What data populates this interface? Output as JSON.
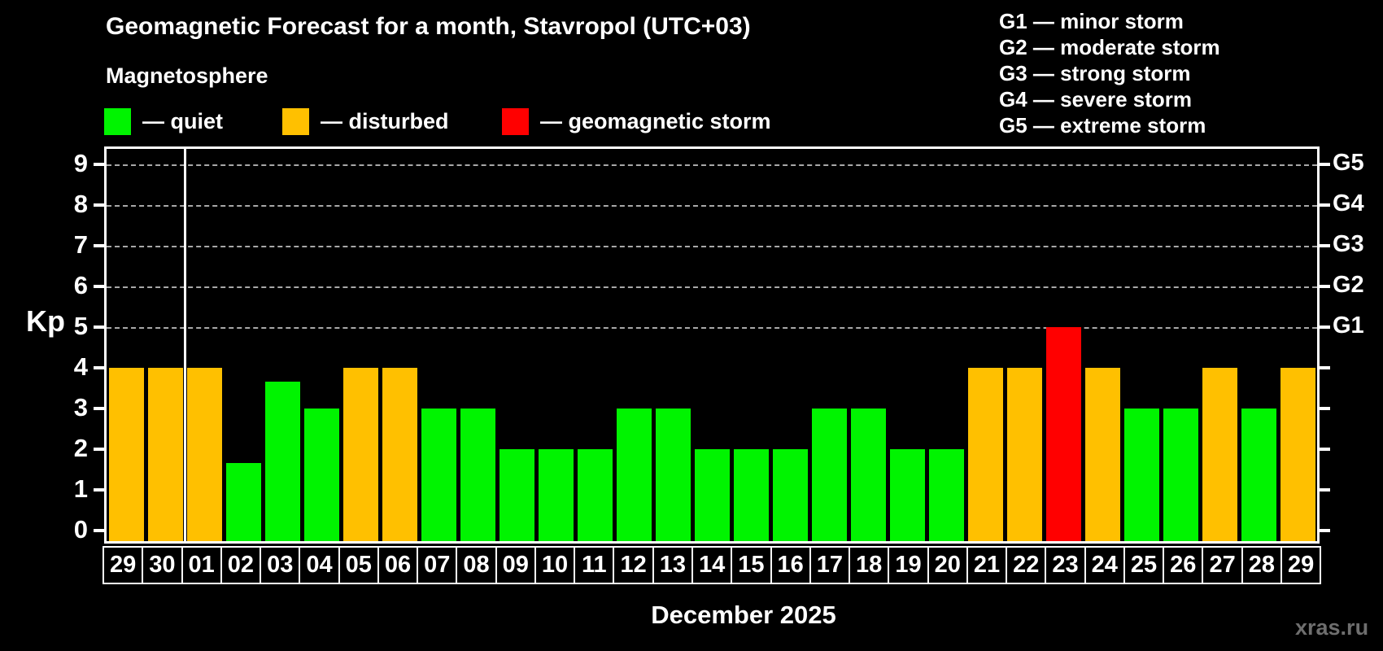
{
  "title": "Geomagnetic Forecast for a month, Stavropol (UTC+03)",
  "subtitle": "Magnetosphere",
  "legend": {
    "items": [
      {
        "name": "quiet",
        "label": "— quiet",
        "color": "#00f400"
      },
      {
        "name": "disturbed",
        "label": "— disturbed",
        "color": "#ffc000"
      },
      {
        "name": "storm",
        "label": "— geomagnetic storm",
        "color": "#ff0000"
      }
    ]
  },
  "storm_scale_legend": {
    "items": [
      "G1 — minor storm",
      "G2 — moderate storm",
      "G3 — strong storm",
      "G4 — severe storm",
      "G5 — extreme storm"
    ]
  },
  "watermark": "xras.ru",
  "colors": {
    "background": "#000000",
    "axis": "#ffffff",
    "grid": "#a8a8a8",
    "quiet": "#00f400",
    "disturbed": "#ffc000",
    "storm": "#ff0000",
    "watermark_text": "#6e6e6e"
  },
  "chart_data": {
    "type": "bar",
    "title": "Geomagnetic Forecast for a month, Stavropol (UTC+03)",
    "xlabel": "December 2025",
    "ylabel": "Kp",
    "ylim": [
      0,
      9
    ],
    "y_ticks": [
      0,
      1,
      2,
      3,
      4,
      5,
      6,
      7,
      8,
      9
    ],
    "grid": "dashed horizontal gridlines only at Kp 5,6,7,8,9",
    "right_axis_labels": [
      {
        "label": "G1",
        "kp": 5
      },
      {
        "label": "G2",
        "kp": 6
      },
      {
        "label": "G3",
        "kp": 7
      },
      {
        "label": "G4",
        "kp": 8
      },
      {
        "label": "G5",
        "kp": 9
      }
    ],
    "categories": [
      "29",
      "30",
      "01",
      "02",
      "03",
      "04",
      "05",
      "06",
      "07",
      "08",
      "09",
      "10",
      "11",
      "12",
      "13",
      "14",
      "15",
      "16",
      "17",
      "18",
      "19",
      "20",
      "21",
      "22",
      "23",
      "24",
      "25",
      "26",
      "27",
      "28",
      "29"
    ],
    "values": [
      4,
      4,
      4,
      1.67,
      3.67,
      3,
      4,
      4,
      3,
      3,
      2,
      2,
      2,
      3,
      3,
      2,
      2,
      2,
      3,
      3,
      2,
      2,
      4,
      4,
      5,
      4,
      3,
      3,
      4,
      3,
      4
    ],
    "statuses": [
      "disturbed",
      "disturbed",
      "disturbed",
      "quiet",
      "quiet",
      "quiet",
      "disturbed",
      "disturbed",
      "quiet",
      "quiet",
      "quiet",
      "quiet",
      "quiet",
      "quiet",
      "quiet",
      "quiet",
      "quiet",
      "quiet",
      "quiet",
      "quiet",
      "quiet",
      "quiet",
      "disturbed",
      "disturbed",
      "storm",
      "disturbed",
      "quiet",
      "quiet",
      "disturbed",
      "quiet",
      "disturbed"
    ],
    "month_separator_after_index": 1,
    "legend_position": "top-left",
    "right_legend_position": "top-right"
  }
}
